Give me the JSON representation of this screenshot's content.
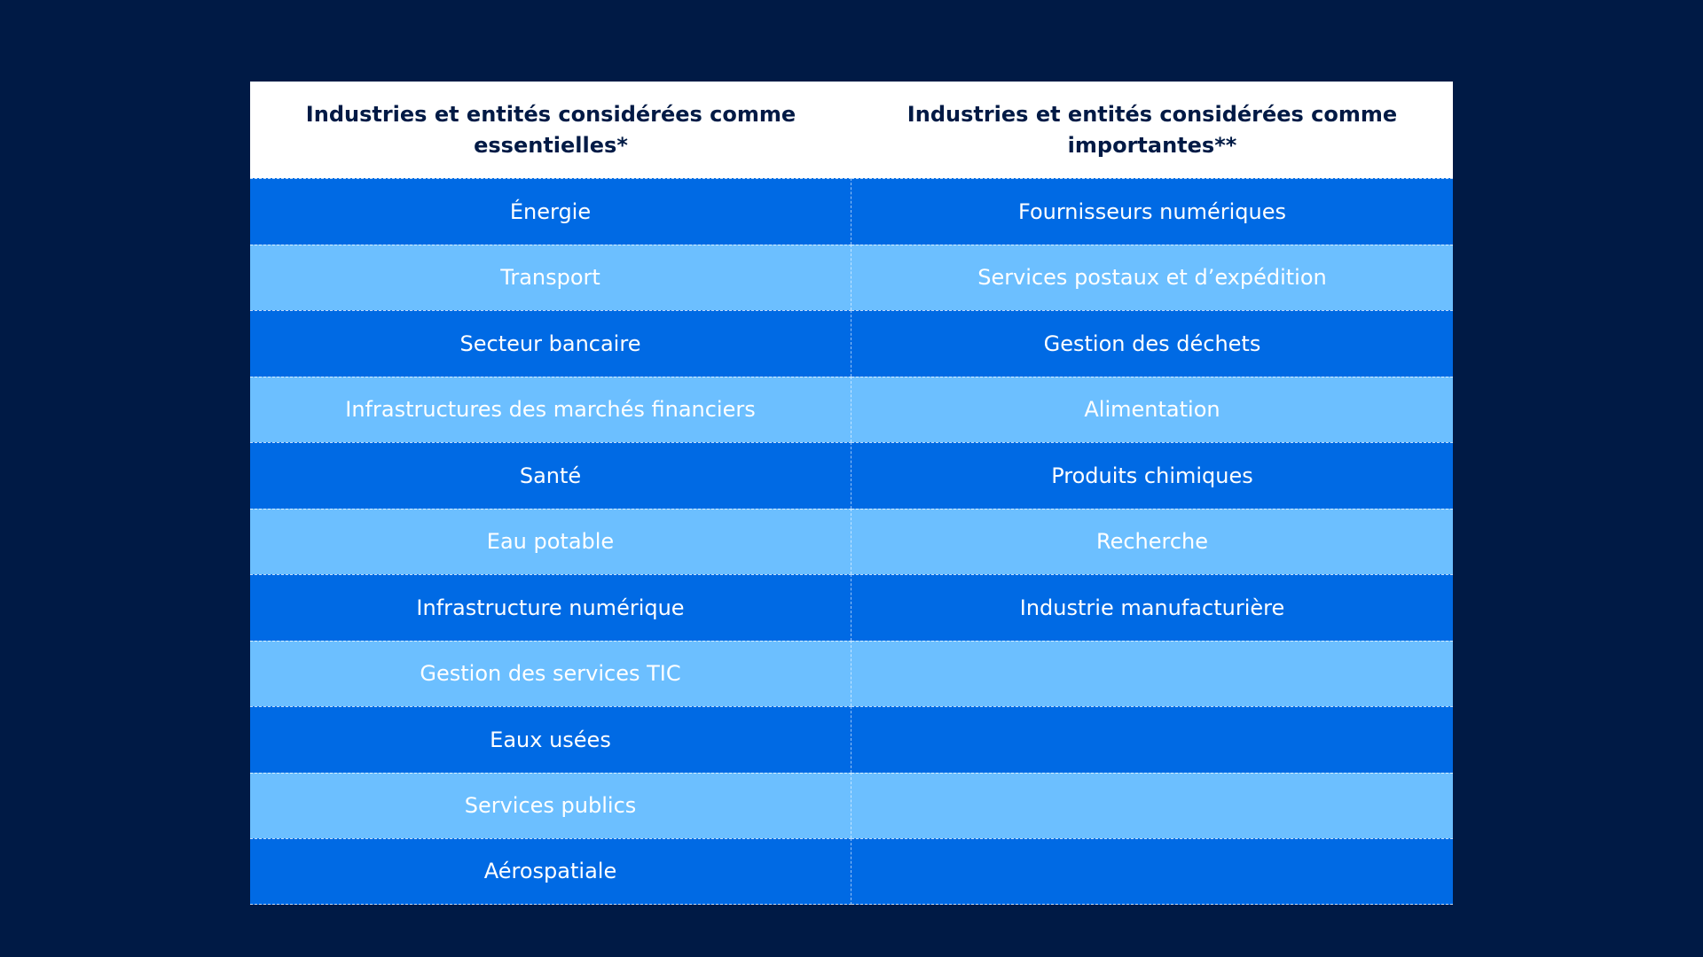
{
  "table": {
    "headers": [
      "Industries et entités considérées comme essentielles*",
      "Industries et entités considérées comme importantes**"
    ],
    "rows": [
      [
        "Énergie",
        "Fournisseurs numériques"
      ],
      [
        "Transport",
        "Services postaux et d’expédition"
      ],
      [
        "Secteur bancaire",
        "Gestion des déchets"
      ],
      [
        "Infrastructures des marchés financiers",
        "Alimentation"
      ],
      [
        "Santé",
        "Produits chimiques"
      ],
      [
        "Eau potable",
        "Recherche"
      ],
      [
        "Infrastructure numérique",
        "Industrie manufacturière"
      ],
      [
        "Gestion des services TIC",
        ""
      ],
      [
        "Eaux usées",
        ""
      ],
      [
        "Services publics",
        ""
      ],
      [
        "Aérospatiale",
        ""
      ]
    ]
  },
  "colors": {
    "background": "#001a45",
    "row_dark": "#006ae4",
    "row_light": "#6cbfff",
    "header_bg": "#ffffff",
    "header_text": "#001a45"
  }
}
